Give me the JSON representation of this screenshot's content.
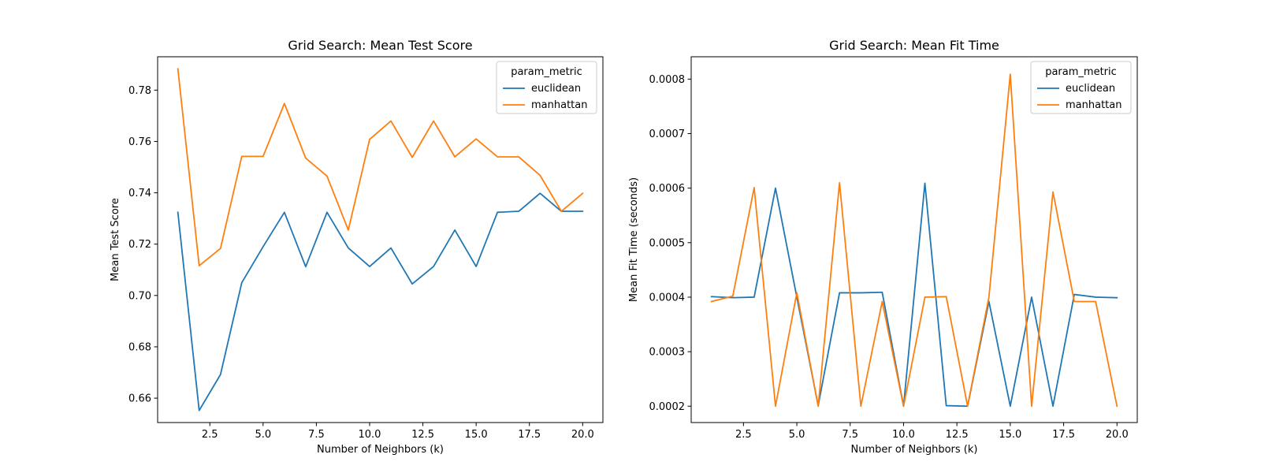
{
  "figure": {
    "background": "#ffffff"
  },
  "chart_data": [
    {
      "type": "line",
      "title": "Grid Search: Mean Test Score",
      "xlabel": "Number of Neighbors (k)",
      "ylabel": "Mean Test Score",
      "xlim": [
        0.05,
        20.95
      ],
      "ylim": [
        0.6505,
        0.793
      ],
      "xticks": [
        2.5,
        5.0,
        7.5,
        10.0,
        12.5,
        15.0,
        17.5,
        20.0
      ],
      "xtick_labels": [
        "2.5",
        "5.0",
        "7.5",
        "10.0",
        "12.5",
        "15.0",
        "17.5",
        "20.0"
      ],
      "yticks": [
        0.66,
        0.68,
        0.7,
        0.72,
        0.74,
        0.76,
        0.78
      ],
      "ytick_labels": [
        "0.66",
        "0.68",
        "0.70",
        "0.72",
        "0.74",
        "0.76",
        "0.78"
      ],
      "grid": false,
      "legend": {
        "title": "param_metric",
        "placement": "top-right"
      },
      "x": [
        1,
        2,
        3,
        4,
        5,
        6,
        7,
        8,
        9,
        10,
        11,
        12,
        13,
        14,
        15,
        16,
        17,
        18,
        19,
        20
      ],
      "series": [
        {
          "name": "euclidean",
          "color": "#1f77b4",
          "values": [
            0.7324,
            0.6552,
            0.6692,
            0.705,
            0.719,
            0.7324,
            0.7112,
            0.7324,
            0.7185,
            0.7113,
            0.7185,
            0.7045,
            0.7113,
            0.7255,
            0.7113,
            0.7324,
            0.7328,
            0.7398,
            0.7328,
            0.7328
          ]
        },
        {
          "name": "manhattan",
          "color": "#ff7f0e",
          "values": [
            0.7883,
            0.7116,
            0.7183,
            0.7542,
            0.7542,
            0.7748,
            0.7535,
            0.7465,
            0.7255,
            0.7608,
            0.768,
            0.7538,
            0.768,
            0.754,
            0.761,
            0.754,
            0.754,
            0.7468,
            0.7328,
            0.7398
          ]
        }
      ]
    },
    {
      "type": "line",
      "title": "Grid Search: Mean Fit Time",
      "xlabel": "Number of Neighbors (k)",
      "ylabel": "Mean Fit Time (seconds)",
      "xlim": [
        0.05,
        20.95
      ],
      "ylim": [
        0.00017,
        0.000841
      ],
      "xticks": [
        2.5,
        5.0,
        7.5,
        10.0,
        12.5,
        15.0,
        17.5,
        20.0
      ],
      "xtick_labels": [
        "2.5",
        "5.0",
        "7.5",
        "10.0",
        "12.5",
        "15.0",
        "17.5",
        "20.0"
      ],
      "yticks": [
        0.0002,
        0.0003,
        0.0004,
        0.0005,
        0.0006,
        0.0007,
        0.0008
      ],
      "ytick_labels": [
        "0.0002",
        "0.0003",
        "0.0004",
        "0.0005",
        "0.0006",
        "0.0007",
        "0.0008"
      ],
      "grid": false,
      "legend": {
        "title": "param_metric",
        "placement": "top-right"
      },
      "x": [
        1,
        2,
        3,
        4,
        5,
        6,
        7,
        8,
        9,
        10,
        11,
        12,
        13,
        14,
        15,
        16,
        17,
        18,
        19,
        20
      ],
      "series": [
        {
          "name": "euclidean",
          "color": "#1f77b4",
          "values": [
            0.000401,
            0.000399,
            0.0004,
            0.0006,
            0.0004,
            0.000201,
            0.000408,
            0.000408,
            0.000409,
            0.0002,
            0.000609,
            0.000201,
            0.0002,
            0.000392,
            0.0002,
            0.0004,
            0.0002,
            0.000405,
            0.0004,
            0.000399
          ]
        },
        {
          "name": "manhattan",
          "color": "#ff7f0e",
          "values": [
            0.000392,
            0.000402,
            0.000601,
            0.0002,
            0.000408,
            0.0002,
            0.00061,
            0.0002,
            0.000392,
            0.0002,
            0.0004,
            0.000401,
            0.0002,
            0.0004,
            0.000809,
            0.0002,
            0.000593,
            0.000392,
            0.000392,
            0.0002
          ]
        }
      ]
    }
  ]
}
